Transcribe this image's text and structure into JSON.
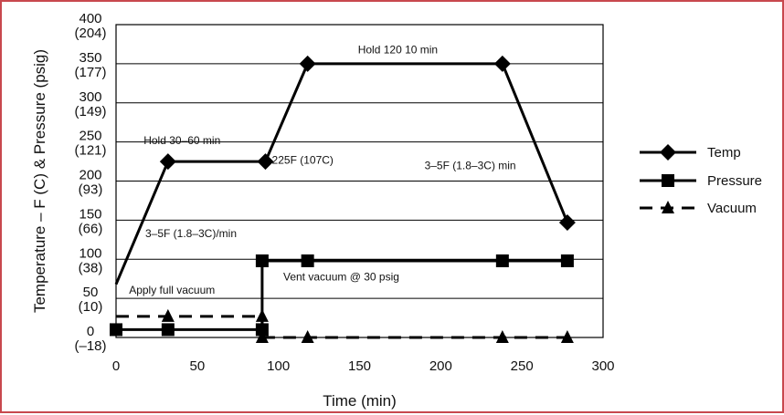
{
  "chart_data": {
    "type": "line",
    "xlabel": "Time (min)",
    "ylabel": "Temperature – F (C) & Pressure (psig)",
    "xlim": [
      0,
      300
    ],
    "ylim": [
      0,
      400
    ],
    "x_ticks": [
      {
        "value": 0,
        "label": "0"
      },
      {
        "value": 50,
        "label": "50"
      },
      {
        "value": 100,
        "label": "100"
      },
      {
        "value": 150,
        "label": "150"
      },
      {
        "value": 200,
        "label": "200"
      },
      {
        "value": 250,
        "label": "250"
      },
      {
        "value": 300,
        "label": "300"
      }
    ],
    "y_ticks": [
      {
        "value": 0,
        "label": "0",
        "sublabel": "(–18)"
      },
      {
        "value": 50,
        "label": "50",
        "sublabel": "(10)"
      },
      {
        "value": 100,
        "label": "100",
        "sublabel": "(38)"
      },
      {
        "value": 150,
        "label": "150",
        "sublabel": "(66)"
      },
      {
        "value": 200,
        "label": "200",
        "sublabel": "(93)"
      },
      {
        "value": 250,
        "label": "250",
        "sublabel": "(121)"
      },
      {
        "value": 300,
        "label": "300",
        "sublabel": "(149)"
      },
      {
        "value": 350,
        "label": "350",
        "sublabel": "(177)"
      },
      {
        "value": 400,
        "label": "400",
        "sublabel": "(204)"
      }
    ],
    "grid": "horizontal",
    "legend_position": "right",
    "series": [
      {
        "name": "Temp",
        "marker": "diamond",
        "style": "solid",
        "color": "#000000",
        "points": [
          [
            0,
            68,
            false
          ],
          [
            32,
            225,
            true
          ],
          [
            92,
            225,
            true
          ],
          [
            118,
            350,
            true
          ],
          [
            238,
            350,
            true
          ],
          [
            278,
            147,
            true
          ]
        ]
      },
      {
        "name": "Pressure",
        "marker": "square",
        "style": "solid",
        "color": "#000000",
        "points": [
          [
            0,
            10,
            true
          ],
          [
            32,
            10,
            true
          ],
          [
            90,
            10,
            true
          ],
          [
            90,
            98,
            true
          ],
          [
            118,
            98,
            true
          ],
          [
            238,
            98,
            true
          ],
          [
            278,
            98,
            true
          ]
        ]
      },
      {
        "name": "Vacuum",
        "marker": "triangle",
        "style": "dashed",
        "color": "#000000",
        "segments": [
          [
            [
              0,
              27,
              false
            ],
            [
              32,
              27,
              true
            ],
            [
              90,
              27,
              true
            ]
          ],
          [
            [
              90,
              27,
              false
            ],
            [
              90,
              0,
              true
            ]
          ],
          [
            [
              90,
              0,
              false
            ],
            [
              118,
              0,
              true
            ],
            [
              238,
              0,
              true
            ],
            [
              278,
              0,
              true
            ]
          ]
        ]
      }
    ],
    "annotations": [
      {
        "text": "Hold 120  10 min",
        "x": 149,
        "y": 363
      },
      {
        "text": "Hold 30–60 min",
        "x": 17,
        "y": 247
      },
      {
        "text": "225F (107C)",
        "x": 96,
        "y": 222
      },
      {
        "text": "3–5F (1.8–3C) min",
        "x": 190,
        "y": 215
      },
      {
        "text": "3–5F (1.8–3C)/min",
        "x": 18,
        "y": 128
      },
      {
        "text": "Vent vacuum @ 30 psig",
        "x": 103,
        "y": 73
      },
      {
        "text": "Apply full vacuum",
        "x": 8,
        "y": 56
      }
    ]
  }
}
